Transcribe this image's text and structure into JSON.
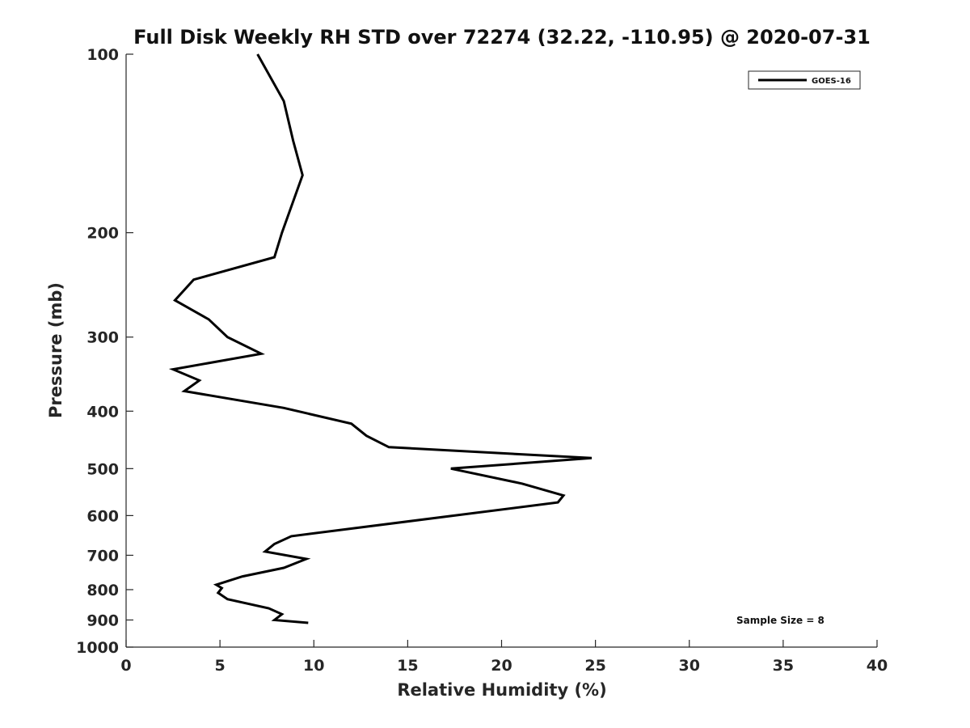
{
  "chart_data": {
    "type": "line",
    "title": "Full Disk Weekly RH STD over 72274 (32.22, -110.95) @ 2020-07-31",
    "xlabel": "Relative Humidity (%)",
    "ylabel": "Pressure (mb)",
    "xlim": [
      0,
      40
    ],
    "ylim": [
      100,
      1000
    ],
    "yscale": "log",
    "y_reversed": true,
    "xticks": [
      0,
      5,
      10,
      15,
      20,
      25,
      30,
      35,
      40
    ],
    "yticks": [
      100,
      200,
      300,
      400,
      500,
      600,
      700,
      800,
      900,
      1000
    ],
    "grid": false,
    "legend_position": "top-right",
    "series": [
      {
        "name": "GOES-16",
        "color": "#000000",
        "x": [
          7.0,
          8.4,
          8.9,
          9.4,
          8.3,
          7.9,
          3.6,
          2.6,
          4.4,
          5.4,
          7.2,
          2.5,
          3.9,
          3.1,
          8.4,
          12.0,
          12.8,
          14.0,
          24.8,
          17.3,
          21.1,
          23.3,
          23.0,
          8.8,
          7.9,
          7.4,
          9.6,
          8.4,
          6.2,
          4.8,
          5.1,
          4.9,
          5.4,
          7.6,
          8.3,
          7.9,
          9.7
        ],
        "y": [
          100,
          120,
          140,
          160,
          200,
          220,
          240,
          260,
          280,
          300,
          320,
          340,
          355,
          370,
          395,
          420,
          440,
          460,
          480,
          500,
          530,
          555,
          570,
          650,
          670,
          690,
          710,
          735,
          760,
          785,
          795,
          810,
          830,
          860,
          880,
          900,
          910
        ]
      }
    ],
    "annotations": [
      "Sample Size = 8"
    ]
  }
}
